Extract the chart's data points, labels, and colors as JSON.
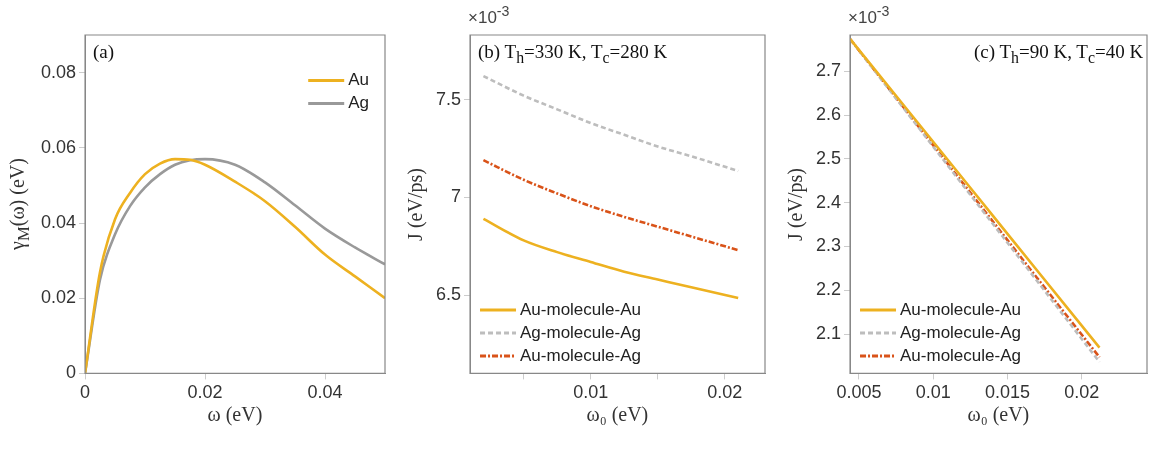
{
  "chart_data": [
    {
      "type": "line",
      "xlabel": "ω (eV)",
      "ylabel": "γ$_{M}$(ω) (eV)",
      "annotations": [
        "(a)"
      ],
      "x": [
        0,
        0.0025,
        0.005,
        0.0075,
        0.01,
        0.0125,
        0.015,
        0.0175,
        0.02,
        0.025,
        0.03,
        0.035,
        0.04,
        0.045,
        0.05
      ],
      "series": [
        {
          "name": "Au",
          "color": "#edb120",
          "line_style": "solid",
          "values": [
            0,
            0.027,
            0.041,
            0.048,
            0.053,
            0.0558,
            0.057,
            0.0568,
            0.0555,
            0.051,
            0.0458,
            0.039,
            0.0316,
            0.0258,
            0.02
          ]
        },
        {
          "name": "Ag",
          "color": "#999999",
          "line_style": "solid",
          "values": [
            0,
            0.025,
            0.037,
            0.0445,
            0.0495,
            0.053,
            0.0555,
            0.0567,
            0.057,
            0.0555,
            0.0508,
            0.0447,
            0.0385,
            0.0335,
            0.029
          ]
        }
      ],
      "xlim": [
        0,
        0.05
      ],
      "xticks": [
        0,
        0.02,
        0.04
      ],
      "ylim": [
        0,
        0.09
      ],
      "yticks": [
        0,
        0.02,
        0.04,
        0.06,
        0.08
      ],
      "grid": false,
      "legend": "top right",
      "marker": "none"
    },
    {
      "type": "line",
      "xlabel": "ω₀ (eV)",
      "ylabel": "J (eV/ps)",
      "annotations": [
        "×10$^{-3}$",
        "(b) T$_{h}$=330 K, T$_{c}$=280 K"
      ],
      "x": [
        0.002,
        0.005,
        0.0075,
        0.01,
        0.0125,
        0.015,
        0.0175,
        0.021
      ],
      "series": [
        {
          "name": "Au-molecule-Au",
          "color": "#edb120",
          "line_style": "solid",
          "values": [
            6.89,
            6.78,
            6.72,
            6.67,
            6.62,
            6.58,
            6.54,
            6.485
          ]
        },
        {
          "name": "Ag-molecule-Ag",
          "color": "#bdbdbd",
          "line_style": "dashed",
          "values": [
            7.62,
            7.52,
            7.45,
            7.38,
            7.32,
            7.26,
            7.21,
            7.135
          ]
        },
        {
          "name": "Au-molecule-Ag",
          "color": "#d95319",
          "line_style": "dotted",
          "values": [
            7.19,
            7.09,
            7.02,
            6.955,
            6.9,
            6.85,
            6.8,
            6.73
          ]
        }
      ],
      "xlim": [
        0.001,
        0.023
      ],
      "xticks": [
        {
          "value": 0.005,
          "label": null
        },
        0.01,
        {
          "value": 0.015,
          "label": null
        },
        0.02
      ],
      "ylim": [
        6.1,
        7.83
      ],
      "yticks": [
        6.5,
        7,
        7.5
      ],
      "grid": false,
      "legend": "bottom left",
      "marker": "none"
    },
    {
      "type": "line",
      "xlabel": "ω₀ (eV)",
      "ylabel": "J (eV/ps)",
      "annotations": [
        "×10$^{-3}$",
        "(c) T$_{h}$=90 K, T$_{c}$=40 K"
      ],
      "x": [
        0.0044,
        0.008,
        0.0125,
        0.017,
        0.0212
      ],
      "series": [
        {
          "name": "Au-molecule-Au",
          "color": "#edb120",
          "line_style": "solid",
          "values": [
            2.774,
            2.623,
            2.434,
            2.245,
            2.069
          ]
        },
        {
          "name": "Ag-molecule-Ag",
          "color": "#bdbdbd",
          "line_style": "dashed",
          "values": [
            2.774,
            2.616,
            2.418,
            2.221,
            2.036
          ]
        },
        {
          "name": "Au-molecule-Ag",
          "color": "#d95319",
          "line_style": "dotted",
          "values": [
            2.774,
            2.618,
            2.423,
            2.228,
            2.047
          ]
        }
      ],
      "xlim": [
        0.0044,
        0.0244
      ],
      "xticks": [
        0.005,
        0.01,
        0.015,
        0.02
      ],
      "ylim": [
        2.01,
        2.783
      ],
      "yticks": [
        2.1,
        2.2,
        2.3,
        2.4,
        2.5,
        2.6,
        2.7
      ],
      "grid": false,
      "legend": "bottom left",
      "marker": "none"
    }
  ]
}
